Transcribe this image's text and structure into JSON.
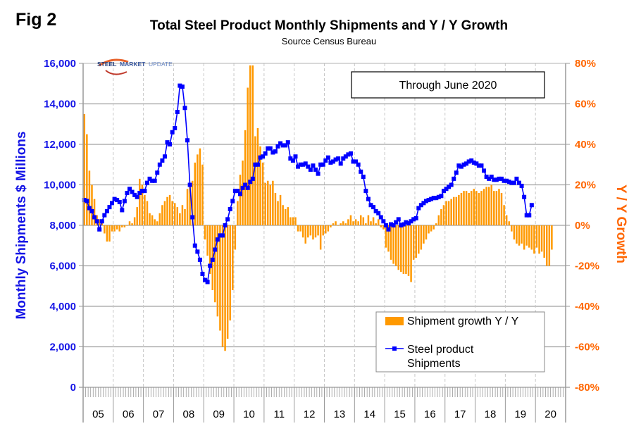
{
  "figure_label": "Fig 2",
  "logo": {
    "part1": "STEEL",
    "part2": "MARKET",
    "part3": "UPDATE"
  },
  "annotation": "Through June 2020",
  "chart_data": {
    "type": "bar+line",
    "title": "Total Steel Product Monthly Shipments and Y / Y Growth",
    "subtitle": "Source Census Bureau",
    "ylabel_left": "Monthly Shipments $ Millions",
    "ylabel_right": "Y / Y Growth",
    "xlabel": "",
    "ylim_left": [
      0,
      16000
    ],
    "ylim_right": [
      -80,
      80
    ],
    "yticks_left": [
      "0",
      "2,000",
      "4,000",
      "6,000",
      "8,000",
      "10,000",
      "12,000",
      "14,000",
      "16,000"
    ],
    "yticks_right": [
      "-80%",
      "-60%",
      "-40%",
      "-20%",
      "0%",
      "20%",
      "40%",
      "60%",
      "80%"
    ],
    "categories": [
      "05",
      "06",
      "07",
      "08",
      "09",
      "10",
      "11",
      "12",
      "13",
      "14",
      "15",
      "16",
      "17",
      "18",
      "19",
      "20"
    ],
    "period": "Jan 2005 - Jun 2020 (monthly)",
    "grid": "horizontal solid, vertical dashed",
    "legend_position": "bottom-right",
    "series": [
      {
        "name": "Shipment growth Y / Y",
        "type": "bar",
        "axis": "right",
        "color": "#ff9900",
        "values": [
          55,
          45,
          27,
          20,
          13,
          5,
          3,
          2,
          -4,
          -8,
          -8,
          -3,
          -3,
          -2,
          -3,
          -1,
          -1,
          0,
          2,
          1,
          4,
          9,
          23,
          20,
          15,
          12,
          6,
          5,
          3,
          2,
          6,
          10,
          12,
          14,
          15,
          12,
          11,
          9,
          6,
          10,
          8,
          18,
          21,
          22,
          31,
          35,
          38,
          30,
          -7,
          -15,
          -24,
          -32,
          -38,
          -45,
          -52,
          -60,
          -62,
          -56,
          -47,
          -32,
          -12,
          12,
          25,
          32,
          47,
          68,
          79,
          79,
          44,
          48,
          39,
          31,
          21,
          22,
          20,
          22,
          16,
          12,
          15,
          10,
          8,
          9,
          4,
          4,
          4,
          -3,
          -3,
          -6,
          -9,
          -6,
          -5,
          -7,
          -6,
          -5,
          -12,
          -5,
          -4,
          -3,
          -1,
          1,
          2,
          0,
          1,
          2,
          1,
          3,
          5,
          2,
          3,
          2,
          5,
          4,
          1,
          5,
          2,
          4,
          1,
          3,
          -1,
          -2,
          -11,
          -13,
          -17,
          -19,
          -20,
          -22,
          -23,
          -24,
          -24,
          -25,
          -28,
          -17,
          -16,
          -14,
          -12,
          -9,
          -7,
          -4,
          -3,
          -2,
          1,
          5,
          8,
          10,
          12,
          12,
          13,
          14,
          14,
          15,
          16,
          17,
          17,
          16,
          17,
          18,
          17,
          16,
          17,
          18,
          19,
          19,
          20,
          17,
          17,
          18,
          16,
          10,
          5,
          2,
          -3,
          -7,
          -9,
          -10,
          -9,
          -12,
          -10,
          -11,
          -12,
          -14,
          -11,
          -14,
          -13,
          -16,
          -20,
          -20,
          -12
        ]
      },
      {
        "name": "Steel product Shipments",
        "type": "line",
        "axis": "left",
        "color": "#0000ff",
        "values": [
          9250,
          9200,
          8850,
          8700,
          8400,
          8200,
          7800,
          8200,
          8500,
          8700,
          8900,
          9100,
          9300,
          9250,
          9150,
          8750,
          9200,
          9600,
          9800,
          9650,
          9500,
          9400,
          9600,
          9700,
          9700,
          10100,
          10300,
          10200,
          10200,
          10600,
          11000,
          11200,
          11400,
          12100,
          12000,
          12600,
          12800,
          13600,
          14900,
          14850,
          13800,
          12200,
          10000,
          8400,
          7000,
          6700,
          6300,
          5600,
          5300,
          5200,
          6000,
          6300,
          6800,
          7300,
          7500,
          7500,
          8000,
          8300,
          8800,
          9200,
          9700,
          9700,
          9550,
          9850,
          10000,
          9850,
          10150,
          10300,
          11000,
          11000,
          11350,
          11400,
          11550,
          11800,
          11800,
          11600,
          11650,
          11900,
          12050,
          11950,
          11950,
          12100,
          11300,
          11200,
          11400,
          10900,
          11000,
          11000,
          11050,
          10900,
          10750,
          10950,
          10750,
          10550,
          11000,
          11000,
          11200,
          11350,
          11100,
          11150,
          11250,
          11300,
          11050,
          11300,
          11400,
          11500,
          11550,
          11150,
          11150,
          11000,
          10650,
          10400,
          9700,
          9300,
          9000,
          8900,
          8700,
          8600,
          8400,
          8200,
          8000,
          7800,
          8050,
          8000,
          8150,
          8300,
          8000,
          8050,
          8150,
          8100,
          8200,
          8300,
          8350,
          8850,
          9000,
          9100,
          9200,
          9250,
          9300,
          9350,
          9350,
          9400,
          9450,
          9700,
          9800,
          9900,
          10000,
          10300,
          10600,
          10950,
          10900,
          11000,
          11050,
          11150,
          11200,
          11100,
          11050,
          10950,
          10950,
          10700,
          10400,
          10300,
          10400,
          10250,
          10250,
          10300,
          10300,
          10200,
          10200,
          10150,
          10100,
          10100,
          10300,
          10100,
          9950,
          9400,
          8500,
          8500,
          9000
        ]
      }
    ]
  },
  "legend": {
    "bar_label": "Shipment growth Y / Y",
    "line_label_1": "Steel product",
    "line_label_2": "Shipments"
  }
}
